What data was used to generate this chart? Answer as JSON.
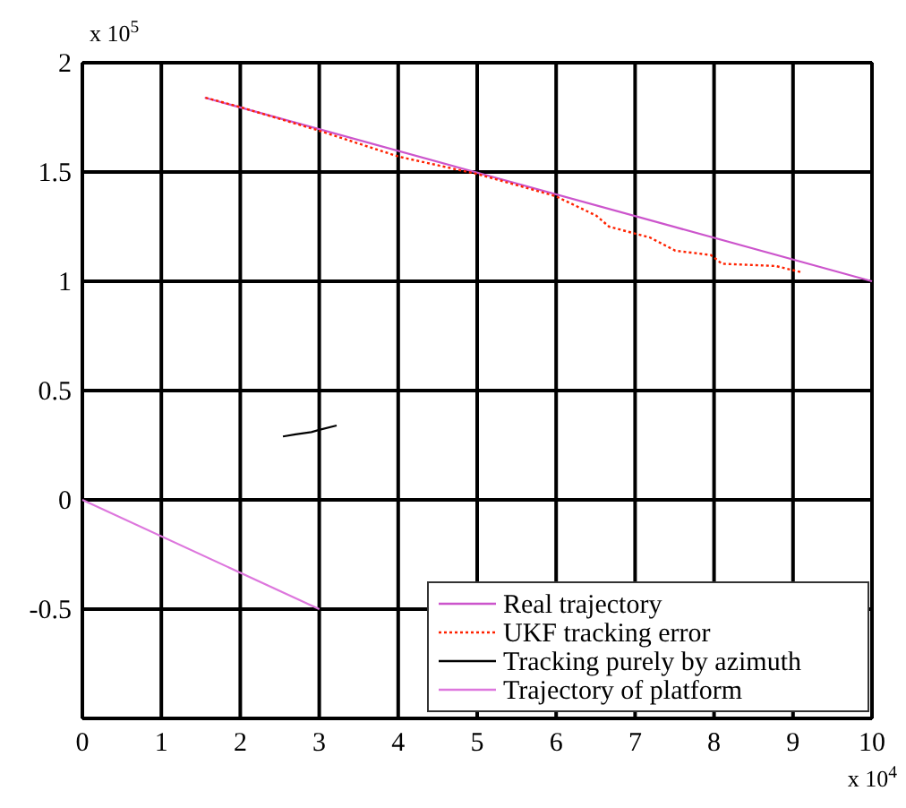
{
  "chart_data": {
    "type": "line",
    "xlim": [
      0,
      10
    ],
    "ylim": [
      -1,
      2
    ],
    "xticks": [
      0,
      1,
      2,
      3,
      4,
      5,
      6,
      7,
      8,
      9,
      10
    ],
    "yticks": [
      {
        "value": -1,
        "label": null
      },
      -0.5,
      0,
      0.5,
      1,
      1.5,
      2
    ],
    "grid": true,
    "legend": "bottom right",
    "marker": "none",
    "annotations": [
      "x 10$^{4}$",
      "x 10$^{5}$"
    ],
    "series": [
      {
        "name": "Real trajectory",
        "color": "#cc55cc",
        "line_style": "solid",
        "x": [
          1.55,
          10
        ],
        "values": [
          1.84,
          1.0
        ]
      },
      {
        "name": "UKF tracking error",
        "color": "#ff2200",
        "line_style": "dotted",
        "x": [
          1.56,
          1.97,
          2.99,
          4.01,
          5.01,
          5.99,
          6.51,
          6.67,
          7.19,
          7.51,
          7.96,
          8.1,
          8.78,
          9.12
        ],
        "values": [
          1.84,
          1.8,
          1.69,
          1.57,
          1.49,
          1.39,
          1.3,
          1.25,
          1.2,
          1.14,
          1.12,
          1.08,
          1.07,
          1.04
        ]
      },
      {
        "name": "Tracking purely by azimuth",
        "color": "#000000",
        "line_style": "solid",
        "x": [
          2.54,
          2.7,
          2.9,
          3.0,
          3.22
        ],
        "values": [
          0.29,
          0.3,
          0.31,
          0.32,
          0.34
        ]
      },
      {
        "name": "Trajectory of platform",
        "color": "#dd77dd",
        "line_style": "solid",
        "x": [
          0,
          3
        ],
        "values": [
          0,
          -0.5
        ]
      }
    ]
  }
}
